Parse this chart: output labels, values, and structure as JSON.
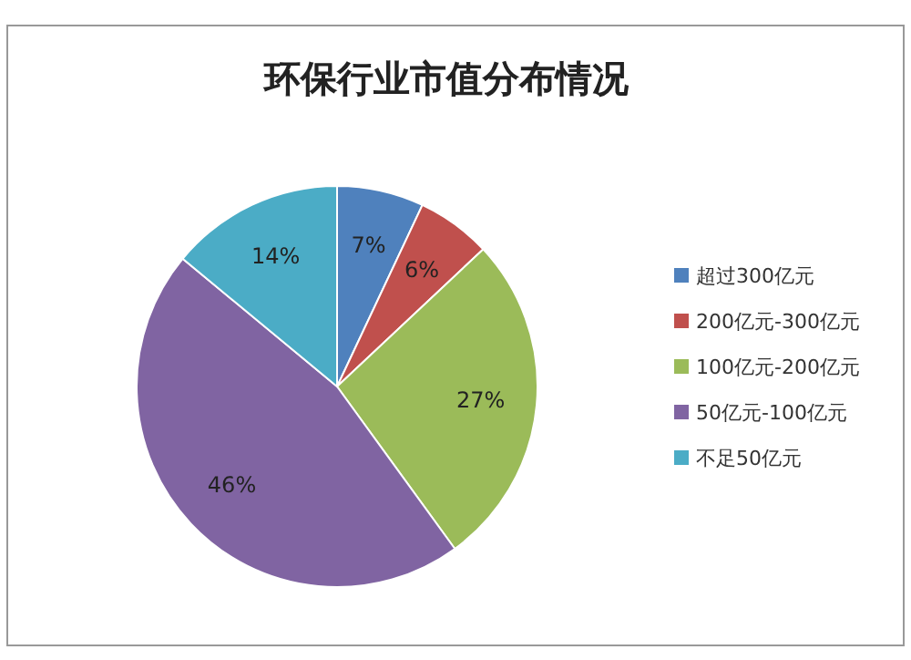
{
  "chart_data": {
    "type": "pie",
    "title": "环保行业市值分布情况",
    "categories": [
      "超过300亿元",
      "200亿元-300亿元",
      "100亿元-200亿元",
      "50亿元-100亿元",
      "不足50亿元"
    ],
    "values": [
      7,
      6,
      27,
      46,
      14
    ],
    "colors": [
      "#4f81bd",
      "#c0504d",
      "#9bbb59",
      "#8064a2",
      "#4bacc6"
    ],
    "value_labels": [
      "7%",
      "6%",
      "27%",
      "46%",
      "14%"
    ],
    "legend": "right"
  }
}
